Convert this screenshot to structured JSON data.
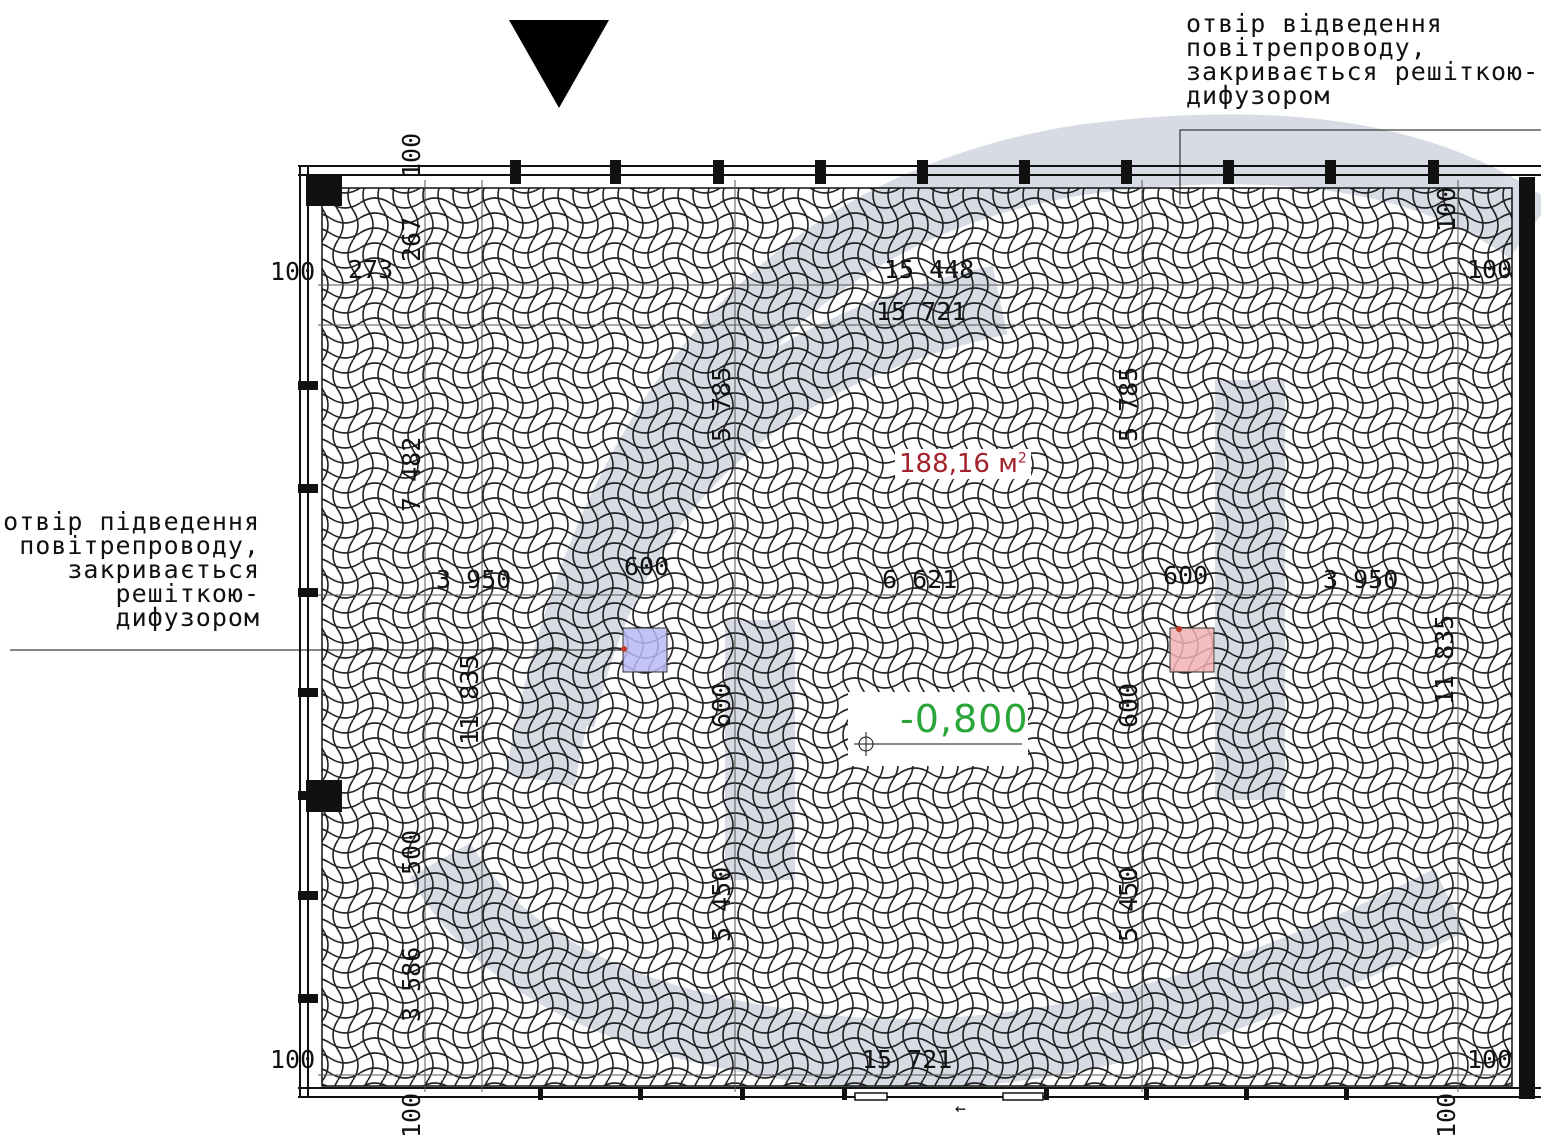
{
  "notes": {
    "supply_opening": "отвір підведення\nповітрепроводу,\nзакривається\nрешіткою-\nдифузором",
    "exhaust_opening": "отвір відведення\nповітрепроводу,\nзакривається решіткою-\nдифузором"
  },
  "area": {
    "value": "188,16 м",
    "sup": "2"
  },
  "level": {
    "value": "-0,800"
  },
  "dimensions": {
    "top_margin_left": "100",
    "top_margin_right": "100",
    "bottom_margin_left": "100",
    "bottom_margin_right": "100",
    "left_edge_top": "100",
    "left_edge_bottom": "100",
    "right_edge_top": "100",
    "right_edge_bottom": "100",
    "top_offset_a": "273",
    "top_offset_b": "267",
    "overall_width_inner": "15 448",
    "overall_width": "15 721",
    "overall_width_bottom": "15 721",
    "left_height_top": "7 482",
    "left_height_mid": "11 835",
    "left_seg_500": "500",
    "left_seg_3586": "3 586",
    "right_height_mid": "11 835",
    "col_a_upper": "5 785",
    "col_b_upper": "5 785",
    "col_a_lower": "5 450",
    "col_b_lower": "5 450",
    "col_a_600": "600",
    "col_b_600": "600",
    "left_gap": "3 950",
    "right_gap": "3 950",
    "middle_gap": "6 621",
    "grille_a": "600",
    "grille_b": "600"
  },
  "colors": {
    "supply_grille": "#b9b9f5",
    "exhaust_grille": "#f2b3b3",
    "level_green": "#2aa53a",
    "area_red": "#a4222b",
    "watermark": "#c9cfdb"
  },
  "icons": {
    "north_marker": "down-triangle-icon",
    "direction": "left-arrow-icon"
  }
}
